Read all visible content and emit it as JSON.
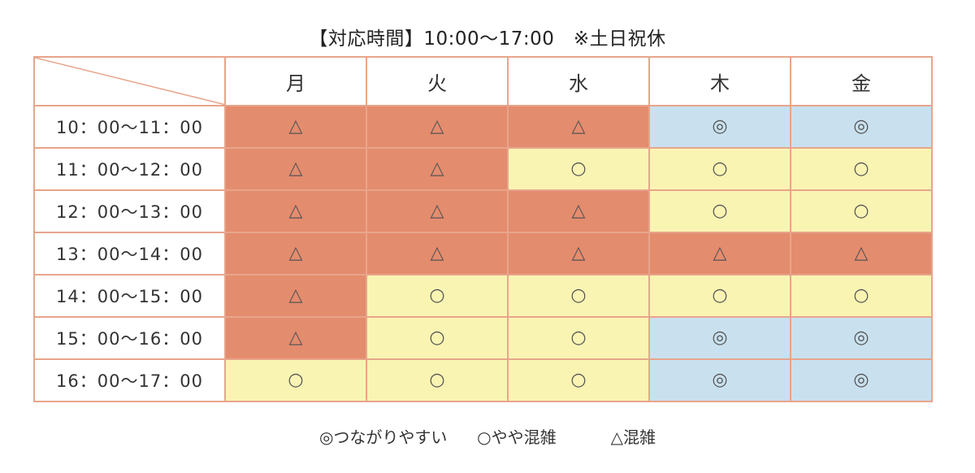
{
  "title": "【対応時間】10:00〜17:00　※土日祝休",
  "colors": {
    "crowded": "#e48c6e",
    "somewhat": "#faf4b3",
    "easy": "#c9e1ef",
    "border": "#e7a58b"
  },
  "days": [
    "月",
    "火",
    "水",
    "木",
    "金"
  ],
  "symbols": {
    "easy": "◎",
    "somewhat": "○",
    "crowded": "△"
  },
  "rows": [
    {
      "time": "10：00〜11：00",
      "cells": [
        "crowded",
        "crowded",
        "crowded",
        "easy",
        "easy"
      ]
    },
    {
      "time": "11：00〜12：00",
      "cells": [
        "crowded",
        "crowded",
        "somewhat",
        "somewhat",
        "somewhat"
      ]
    },
    {
      "time": "12：00〜13：00",
      "cells": [
        "crowded",
        "crowded",
        "crowded",
        "somewhat",
        "somewhat"
      ]
    },
    {
      "time": "13：00〜14：00",
      "cells": [
        "crowded",
        "crowded",
        "crowded",
        "crowded",
        "crowded"
      ]
    },
    {
      "time": "14：00〜15：00",
      "cells": [
        "crowded",
        "somewhat",
        "somewhat",
        "somewhat",
        "somewhat"
      ]
    },
    {
      "time": "15：00〜16：00",
      "cells": [
        "crowded",
        "somewhat",
        "somewhat",
        "easy",
        "easy"
      ]
    },
    {
      "time": "16：00〜17：00",
      "cells": [
        "somewhat",
        "somewhat",
        "somewhat",
        "easy",
        "easy"
      ]
    }
  ],
  "legend": {
    "easy": "◎つながりやすい",
    "somewhat": "○やや混雑",
    "crowded": "△混雑"
  }
}
